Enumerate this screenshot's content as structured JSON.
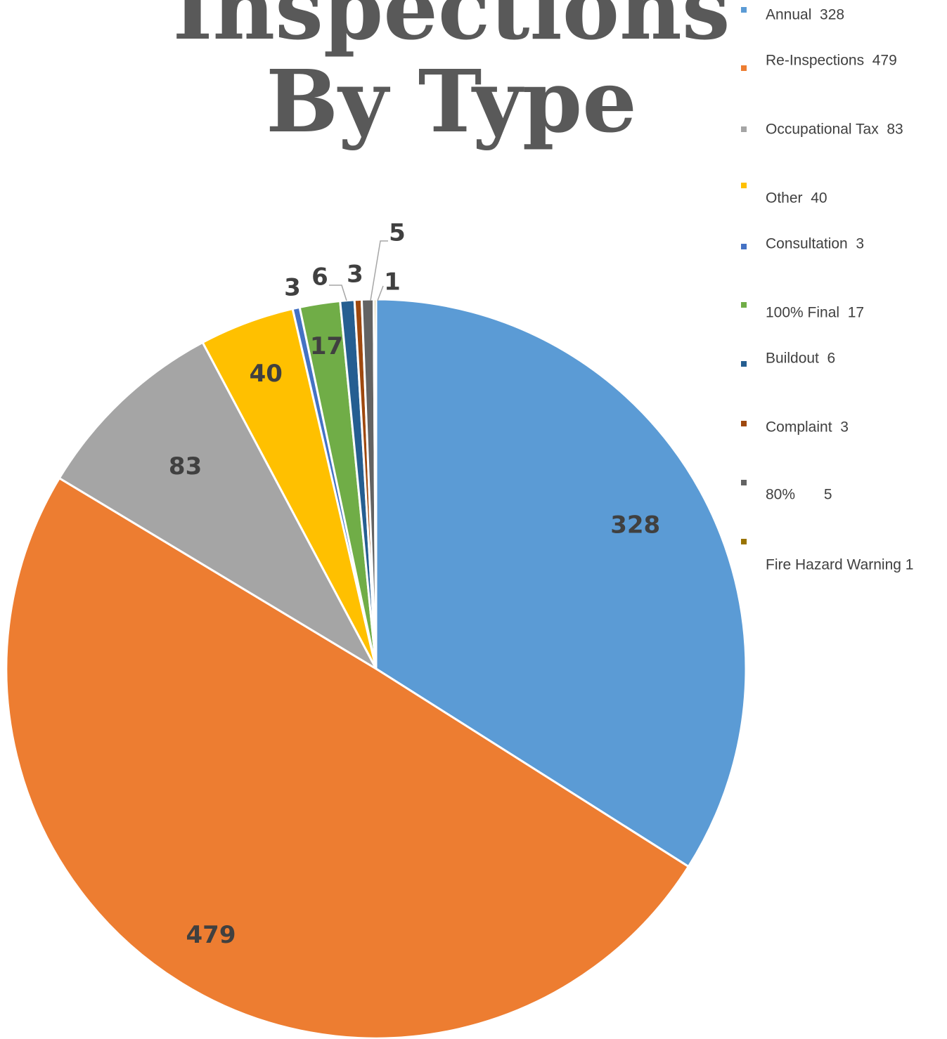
{
  "chart_data": {
    "type": "pie",
    "title": [
      "Inspections",
      "By Type"
    ],
    "legend_position": "right",
    "categories": [
      "Annual",
      "Re-Inspections",
      "Occupational Tax",
      "Other",
      "Consultation",
      "100% Final",
      "Buildout",
      "Complaint",
      "80%",
      "Fire Hazard Warning"
    ],
    "legend_labels": [
      "Annual  328",
      "Re-Inspections  479",
      "Occupational Tax  83",
      "Other  40",
      "Consultation  3",
      "100% Final  17",
      "Buildout  6",
      "Complaint  3",
      "80%       5",
      "Fire Hazard Warning 1"
    ],
    "values": [
      328,
      479,
      83,
      40,
      3,
      17,
      6,
      3,
      5,
      1
    ],
    "data_labels": [
      "328",
      "479",
      "83",
      "40",
      "3",
      "17",
      "6",
      "3",
      "5",
      "1"
    ],
    "colors": [
      "#5B9BD5",
      "#ED7D31",
      "#A5A5A5",
      "#FFC000",
      "#4472C4",
      "#70AD47",
      "#255E91",
      "#9E480E",
      "#636363",
      "#997300"
    ]
  }
}
